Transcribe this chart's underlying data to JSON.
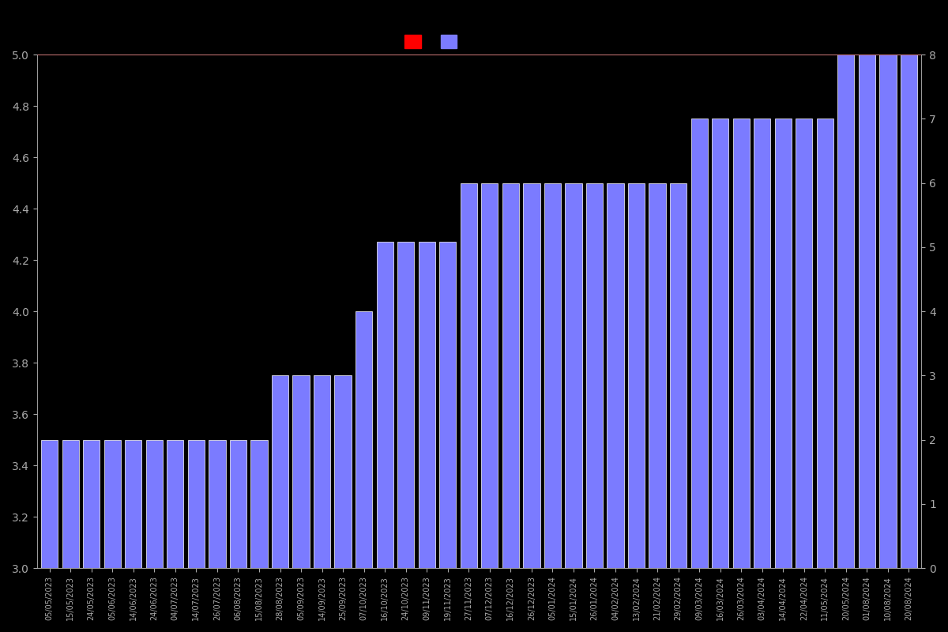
{
  "dates": [
    "05/05/2023",
    "15/05/2023",
    "24/05/2023",
    "05/06/2023",
    "14/06/2023",
    "24/06/2023",
    "04/07/2023",
    "14/07/2023",
    "26/07/2023",
    "06/08/2023",
    "15/08/2023",
    "28/08/2023",
    "05/09/2023",
    "14/09/2023",
    "25/09/2023",
    "07/10/2023",
    "16/10/2023",
    "24/10/2023",
    "09/11/2023",
    "19/11/2023",
    "27/11/2023",
    "07/12/2023",
    "16/12/2023",
    "26/12/2023",
    "05/01/2024",
    "15/01/2024",
    "26/01/2024",
    "04/02/2024",
    "13/02/2024",
    "21/02/2024",
    "29/02/2024",
    "09/03/2024",
    "16/03/2024",
    "26/03/2024",
    "03/04/2024",
    "14/04/2024",
    "22/04/2024",
    "11/05/2024",
    "20/05/2024",
    "01/08/2024",
    "10/08/2024",
    "20/08/2024"
  ],
  "bar_values": [
    3.5,
    3.5,
    3.5,
    3.5,
    3.5,
    3.5,
    3.5,
    3.5,
    3.5,
    3.5,
    3.5,
    3.75,
    3.75,
    3.75,
    3.75,
    4.0,
    4.27,
    4.27,
    4.27,
    4.27,
    4.5,
    4.5,
    4.5,
    4.5,
    4.5,
    4.5,
    4.5,
    4.5,
    4.5,
    4.5,
    4.5,
    4.75,
    4.75,
    4.75,
    4.75,
    4.75,
    4.75,
    4.75,
    5.0,
    5.0,
    5.0,
    5.0
  ],
  "line_value": 5.0,
  "bar_color": "#7b7bff",
  "bar_edgecolor": "#ffffff",
  "line_color": "#ff0000",
  "background_color": "#000000",
  "text_color": "#aaaaaa",
  "ylim_left": [
    3.0,
    5.0
  ],
  "ylim_right": [
    0,
    8
  ],
  "yticks_left": [
    3.0,
    3.2,
    3.4,
    3.6,
    3.8,
    4.0,
    4.2,
    4.4,
    4.6,
    4.8,
    5.0
  ],
  "yticks_right": [
    0,
    1,
    2,
    3,
    4,
    5,
    6,
    7,
    8
  ],
  "legend_labels": [
    "",
    ""
  ],
  "legend_colors": [
    "#ff0000",
    "#7b7bff"
  ],
  "figsize": [
    12.0,
    8.0
  ],
  "dpi": 100
}
